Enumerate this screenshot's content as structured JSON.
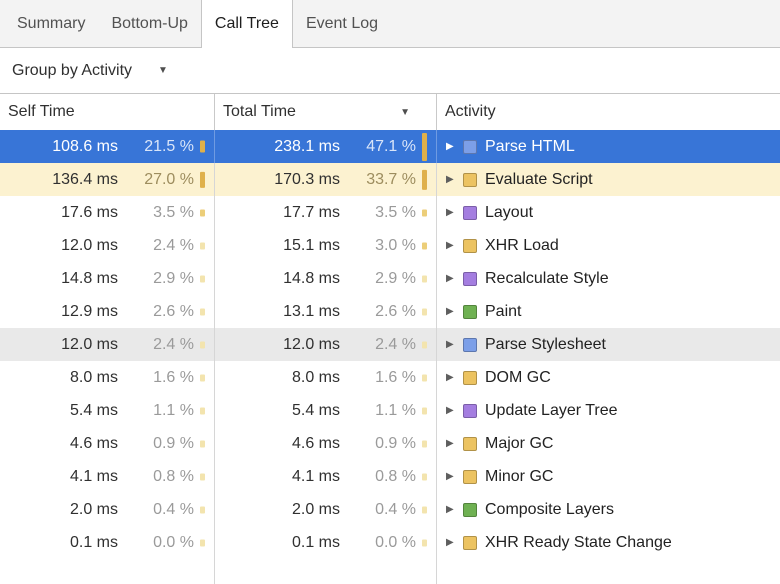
{
  "colors": {
    "selection": "#3875d7",
    "highlight_row": "#fcf2d0",
    "hover_row": "#e9e9e9",
    "categories": {
      "loading": "#7c9fe8",
      "scripting": "#ecc361",
      "rendering": "#a47ee0",
      "painting": "#6fb152"
    },
    "percent_bar": {
      "high": "#dfb04a",
      "mid": "#ecce79",
      "low": "#f3e4ae"
    }
  },
  "icons": {
    "dropdown": "▼",
    "sort": "▼",
    "disclosure": "▶"
  },
  "tabs": [
    {
      "label": "Summary",
      "selected": false
    },
    {
      "label": "Bottom-Up",
      "selected": false
    },
    {
      "label": "Call Tree",
      "selected": true
    },
    {
      "label": "Event Log",
      "selected": false
    }
  ],
  "toolbar": {
    "group_by": "Group by Activity"
  },
  "table": {
    "headers": {
      "self": "Self Time",
      "total": "Total Time",
      "activity": "Activity"
    },
    "sorted_column": "Total Time",
    "sort_direction": "descending",
    "rows": [
      {
        "self_ms": "108.6 ms",
        "self_pct": "21.5 %",
        "self_val": 21.5,
        "total_ms": "238.1 ms",
        "total_pct": "47.1 %",
        "total_val": 47.1,
        "activity": "Parse HTML",
        "category": "loading",
        "state": "selected"
      },
      {
        "self_ms": "136.4 ms",
        "self_pct": "27.0 %",
        "self_val": 27.0,
        "total_ms": "170.3 ms",
        "total_pct": "33.7 %",
        "total_val": 33.7,
        "activity": "Evaluate Script",
        "category": "scripting",
        "state": "highlight"
      },
      {
        "self_ms": "17.6 ms",
        "self_pct": "3.5 %",
        "self_val": 3.5,
        "total_ms": "17.7 ms",
        "total_pct": "3.5 %",
        "total_val": 3.5,
        "activity": "Layout",
        "category": "rendering",
        "state": ""
      },
      {
        "self_ms": "12.0 ms",
        "self_pct": "2.4 %",
        "self_val": 2.4,
        "total_ms": "15.1 ms",
        "total_pct": "3.0 %",
        "total_val": 3.0,
        "activity": "XHR Load",
        "category": "scripting",
        "state": ""
      },
      {
        "self_ms": "14.8 ms",
        "self_pct": "2.9 %",
        "self_val": 2.9,
        "total_ms": "14.8 ms",
        "total_pct": "2.9 %",
        "total_val": 2.9,
        "activity": "Recalculate Style",
        "category": "rendering",
        "state": ""
      },
      {
        "self_ms": "12.9 ms",
        "self_pct": "2.6 %",
        "self_val": 2.6,
        "total_ms": "13.1 ms",
        "total_pct": "2.6 %",
        "total_val": 2.6,
        "activity": "Paint",
        "category": "painting",
        "state": ""
      },
      {
        "self_ms": "12.0 ms",
        "self_pct": "2.4 %",
        "self_val": 2.4,
        "total_ms": "12.0 ms",
        "total_pct": "2.4 %",
        "total_val": 2.4,
        "activity": "Parse Stylesheet",
        "category": "loading",
        "state": "hover"
      },
      {
        "self_ms": "8.0 ms",
        "self_pct": "1.6 %",
        "self_val": 1.6,
        "total_ms": "8.0 ms",
        "total_pct": "1.6 %",
        "total_val": 1.6,
        "activity": "DOM GC",
        "category": "scripting",
        "state": ""
      },
      {
        "self_ms": "5.4 ms",
        "self_pct": "1.1 %",
        "self_val": 1.1,
        "total_ms": "5.4 ms",
        "total_pct": "1.1 %",
        "total_val": 1.1,
        "activity": "Update Layer Tree",
        "category": "rendering",
        "state": ""
      },
      {
        "self_ms": "4.6 ms",
        "self_pct": "0.9 %",
        "self_val": 0.9,
        "total_ms": "4.6 ms",
        "total_pct": "0.9 %",
        "total_val": 0.9,
        "activity": "Major GC",
        "category": "scripting",
        "state": ""
      },
      {
        "self_ms": "4.1 ms",
        "self_pct": "0.8 %",
        "self_val": 0.8,
        "total_ms": "4.1 ms",
        "total_pct": "0.8 %",
        "total_val": 0.8,
        "activity": "Minor GC",
        "category": "scripting",
        "state": ""
      },
      {
        "self_ms": "2.0 ms",
        "self_pct": "0.4 %",
        "self_val": 0.4,
        "total_ms": "2.0 ms",
        "total_pct": "0.4 %",
        "total_val": 0.4,
        "activity": "Composite Layers",
        "category": "painting",
        "state": ""
      },
      {
        "self_ms": "0.1 ms",
        "self_pct": "0.0 %",
        "self_val": 0.0,
        "total_ms": "0.1 ms",
        "total_pct": "0.0 %",
        "total_val": 0.0,
        "activity": "XHR Ready State Change",
        "category": "scripting",
        "state": ""
      }
    ]
  }
}
